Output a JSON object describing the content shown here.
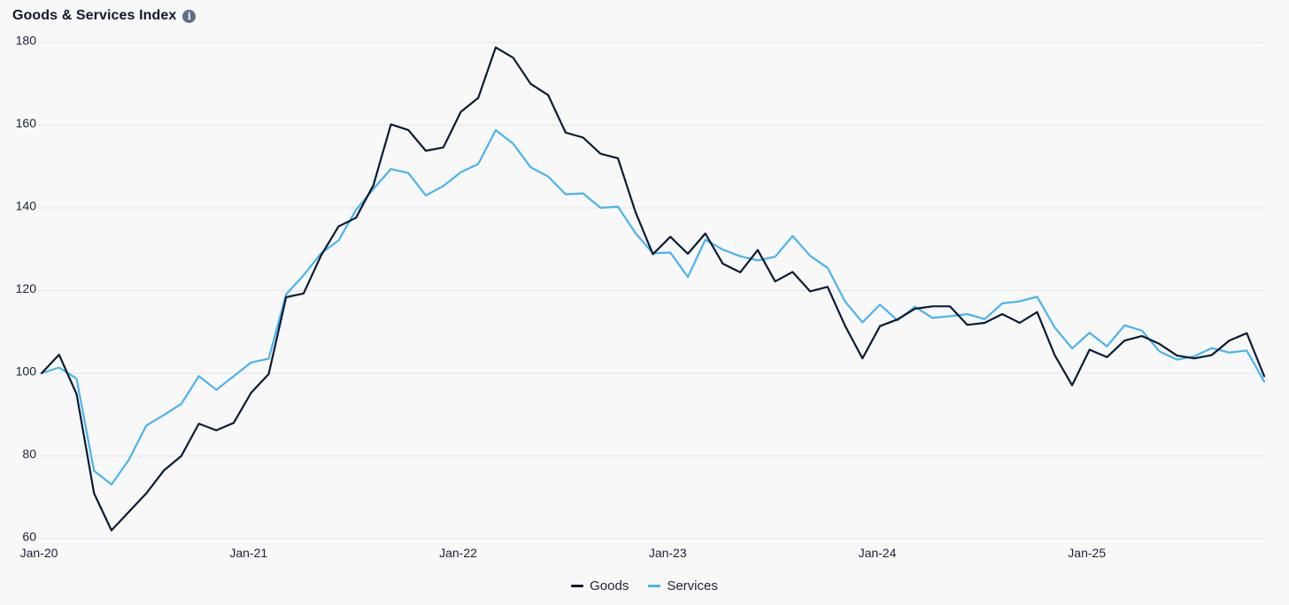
{
  "header": {
    "title": "Goods & Services Index",
    "info_icon": "info-icon"
  },
  "colors": {
    "goods": "#0b1a36",
    "services": "#48b4ee",
    "grid": "#e3e5e9",
    "background": "#f8f8f9"
  },
  "chart_data": {
    "type": "line",
    "title": "Goods & Services Index",
    "xlabel": "",
    "ylabel": "",
    "ylim": [
      60,
      180
    ],
    "y_ticks": [
      60,
      80,
      100,
      120,
      140,
      160,
      180
    ],
    "x_range": [
      "Jan-20",
      "Nov-25"
    ],
    "x_tick_labels": [
      {
        "label": "Jan-20",
        "index": 0
      },
      {
        "label": "Jan-21",
        "index": 12
      },
      {
        "label": "Jan-22",
        "index": 24
      },
      {
        "label": "Jan-23",
        "index": 36
      },
      {
        "label": "Jan-24",
        "index": 48
      },
      {
        "label": "Jan-25",
        "index": 60
      }
    ],
    "grid": "horizontal",
    "legend_position": "bottom-center",
    "series": [
      {
        "name": "Goods",
        "color": "#0b1a36",
        "values": [
          100,
          104.5,
          95,
          71,
          62,
          66.5,
          71,
          76.5,
          80,
          87.8,
          86.2,
          88,
          95.3,
          99.8,
          118.4,
          119.3,
          128.5,
          135.5,
          137.6,
          145.5,
          160.2,
          158.8,
          153.8,
          154.6,
          163.2,
          166.6,
          178.8,
          176.3,
          170,
          167.3,
          158.2,
          157,
          153.1,
          152,
          139,
          128.8,
          133,
          128.9,
          133.8,
          126.5,
          124.4,
          129.8,
          122.2,
          124.5,
          119.8,
          120.9,
          111.5,
          103.6,
          111.4,
          113,
          115.6,
          116.2,
          116.2,
          111.7,
          112.2,
          114.3,
          112.2,
          114.8,
          104.4,
          97.1,
          105.7,
          103.9,
          107.9,
          109,
          107.1,
          104.3,
          103.6,
          104.4,
          107.9,
          109.7,
          99.3
        ]
      },
      {
        "name": "Services",
        "color": "#48b4ee",
        "values": [
          100,
          101.4,
          98.7,
          76.4,
          73.1,
          79.1,
          87.4,
          89.9,
          92.6,
          99.3,
          96,
          99.3,
          102.6,
          103.5,
          119.1,
          123.7,
          129,
          132.1,
          139.5,
          144.6,
          149.4,
          148.4,
          143,
          145.3,
          148.6,
          150.6,
          158.8,
          155.5,
          149.8,
          147.6,
          143.3,
          143.5,
          140,
          140.3,
          133.9,
          129,
          129.2,
          123.3,
          132.3,
          129.9,
          128.3,
          127.3,
          128.2,
          133.2,
          128.4,
          125.5,
          117.4,
          112.3,
          116.6,
          112.8,
          116.1,
          113.4,
          113.8,
          114.3,
          113.1,
          116.9,
          117.4,
          118.5,
          111.1,
          106,
          109.8,
          106.5,
          111.6,
          110.3,
          105.3,
          103.3,
          104.1,
          106.1,
          105,
          105.5,
          98
        ]
      }
    ]
  },
  "legend": {
    "items": [
      {
        "label": "Goods"
      },
      {
        "label": "Services"
      }
    ]
  }
}
